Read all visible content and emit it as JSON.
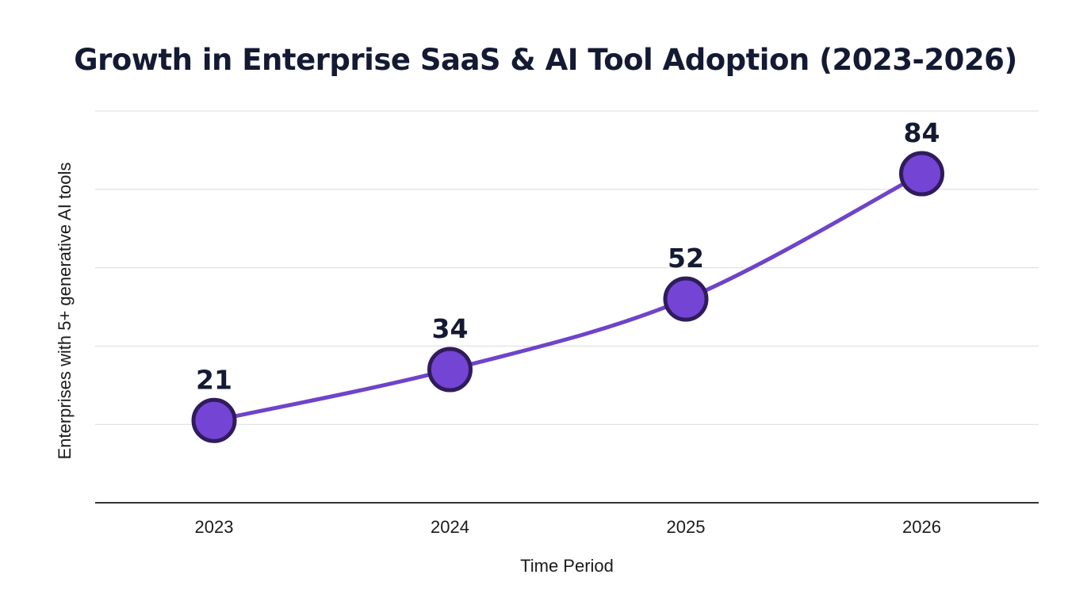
{
  "chart_data": {
    "type": "line",
    "title": "Growth in Enterprise SaaS & AI Tool Adoption (2023-2026)",
    "xlabel": "Time Period",
    "ylabel": "Enterprises with 5+ generative AI tools",
    "categories": [
      "2023",
      "2024",
      "2025",
      "2026"
    ],
    "series": [
      {
        "values": [
          21,
          34,
          52,
          84
        ]
      }
    ],
    "data_labels": [
      "21",
      "34",
      "52",
      "84"
    ],
    "ylim": [
      0,
      100
    ],
    "grid": true,
    "y_tick_labels_shown": false,
    "legend": "none",
    "colors": {
      "line": "#6e44c9",
      "marker_fill": "#7444d4",
      "marker_stroke": "#2f1c5c",
      "text": "#141a33"
    }
  }
}
